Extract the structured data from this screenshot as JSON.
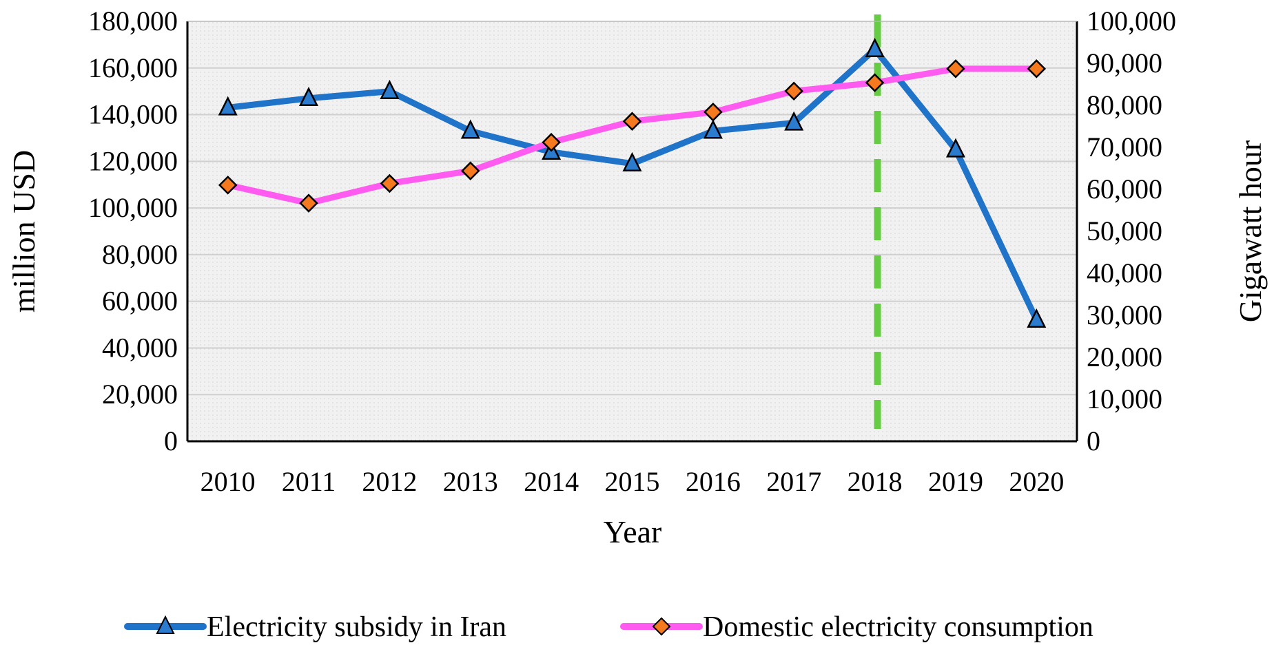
{
  "chart_data": {
    "type": "line",
    "categories": [
      "2010",
      "2011",
      "2012",
      "2013",
      "2014",
      "2015",
      "2016",
      "2017",
      "2018",
      "2019",
      "2020"
    ],
    "xlabel": "Year",
    "ylabel": "million USD",
    "ylabel_right": "Gigawatt hour",
    "ylim": [
      0,
      180000
    ],
    "ylim_right": [
      0,
      100000
    ],
    "y_ticks": [
      "0",
      "20,000",
      "40,000",
      "60,000",
      "80,000",
      "100,000",
      "120,000",
      "140,000",
      "160,000",
      "180,000"
    ],
    "y_right_ticks": [
      "0",
      "10,000",
      "20,000",
      "30,000",
      "40,000",
      "50,000",
      "60,000",
      "70,000",
      "80,000",
      "90,000",
      "100,000"
    ],
    "grid": true,
    "legend_position": "bottom",
    "series": [
      {
        "name": "Electricity subsidy in Iran",
        "axis": "left",
        "color": "#1f73c8",
        "marker": "triangle",
        "marker_color": "#2b7bcf",
        "values": [
          143000,
          147000,
          150000,
          133000,
          124000,
          119000,
          133000,
          136500,
          168000,
          125000,
          52000
        ]
      },
      {
        "name": "Domestic electricity consumption",
        "axis": "right",
        "color": "#ff5bf0",
        "marker": "diamond",
        "marker_color": "#f5791f",
        "values": [
          61000,
          56700,
          61400,
          64400,
          71200,
          76200,
          78400,
          83400,
          85400,
          88700,
          88700
        ]
      }
    ],
    "reference_line": {
      "x": "2018",
      "style": "dashed",
      "color": "#66cc44"
    }
  }
}
